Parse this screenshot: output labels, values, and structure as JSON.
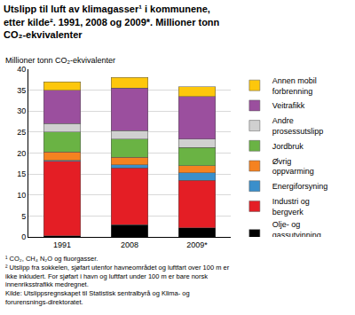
{
  "chart_data": {
    "type": "bar",
    "title": "Utslipp til luft av klimagasser¹ i kommunene, etter kilde². 1991, 2008 og 2009*. Millioner tonn CO₂-ekvivalenter",
    "y_label": "Millioner tonn CO₂-ekvivalenter",
    "categories": [
      "1991",
      "2008",
      "2009*"
    ],
    "series": [
      {
        "name": "Olje- og gassutvinning (landanlegg)",
        "color": "#000000",
        "values": [
          0.3,
          2.9,
          2.2
        ]
      },
      {
        "name": "Industri og bergverk",
        "color": "#e41e25",
        "values": [
          17.7,
          13.6,
          11.3
        ]
      },
      {
        "name": "Energiforsyning",
        "color": "#3a8fcb",
        "values": [
          0.3,
          0.7,
          1.8
        ]
      },
      {
        "name": "Øvrig oppvarming",
        "color": "#f58220",
        "values": [
          2.0,
          1.8,
          1.7
        ]
      },
      {
        "name": "Jordbruk",
        "color": "#6ab344",
        "values": [
          4.7,
          4.3,
          4.3
        ]
      },
      {
        "name": "Andre prosessutslipp",
        "color": "#d0d0d0",
        "values": [
          2.0,
          2.0,
          2.0
        ]
      },
      {
        "name": "Veitrafikk",
        "color": "#9b4f9e",
        "values": [
          8.0,
          10.2,
          10.2
        ]
      },
      {
        "name": "Annen mobil forbrenning",
        "color": "#fdc70c",
        "values": [
          2.0,
          2.5,
          2.3
        ]
      }
    ],
    "ylim": [
      0,
      40
    ],
    "yticks": [
      0,
      5,
      10,
      15,
      20,
      25,
      30,
      35,
      40
    ],
    "grid": true,
    "stacked": true,
    "legend": "right",
    "footnotes": [
      "¹ CO₂, CH₄ N₂O og fluorgasser.",
      "² Utslipp fra sokkelen, sjøfart utenfor havneområdet og luftfart over 100 m er ikke inkludert. For sjøfart i havn og luftfart under 100 m er bare norsk innenriksstrafikk medregnet.",
      "Kilde: Utslippsregnskapet til Statistisk sentralbyrå og Klima- og forurensnings-direktoratet."
    ]
  }
}
